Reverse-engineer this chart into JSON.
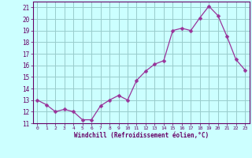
{
  "x": [
    0,
    1,
    2,
    3,
    4,
    5,
    6,
    7,
    8,
    9,
    10,
    11,
    12,
    13,
    14,
    15,
    16,
    17,
    18,
    19,
    20,
    21,
    22,
    23
  ],
  "y": [
    13.0,
    12.6,
    12.0,
    12.2,
    12.0,
    11.3,
    11.3,
    12.5,
    13.0,
    13.4,
    13.0,
    14.7,
    15.5,
    16.1,
    16.4,
    19.0,
    19.2,
    19.0,
    20.1,
    21.1,
    20.3,
    18.5,
    16.5,
    15.6
  ],
  "line_color": "#993399",
  "marker": "D",
  "marker_size": 2.5,
  "bg_color": "#ccffff",
  "grid_color": "#99cccc",
  "xlabel": "Windchill (Refroidissement éolien,°C)",
  "xlabel_color": "#660066",
  "tick_color": "#660066",
  "ylim": [
    11,
    21.5
  ],
  "xlim": [
    -0.5,
    23.5
  ],
  "yticks": [
    11,
    12,
    13,
    14,
    15,
    16,
    17,
    18,
    19,
    20,
    21
  ],
  "xticks": [
    0,
    1,
    2,
    3,
    4,
    5,
    6,
    7,
    8,
    9,
    10,
    11,
    12,
    13,
    14,
    15,
    16,
    17,
    18,
    19,
    20,
    21,
    22,
    23
  ]
}
